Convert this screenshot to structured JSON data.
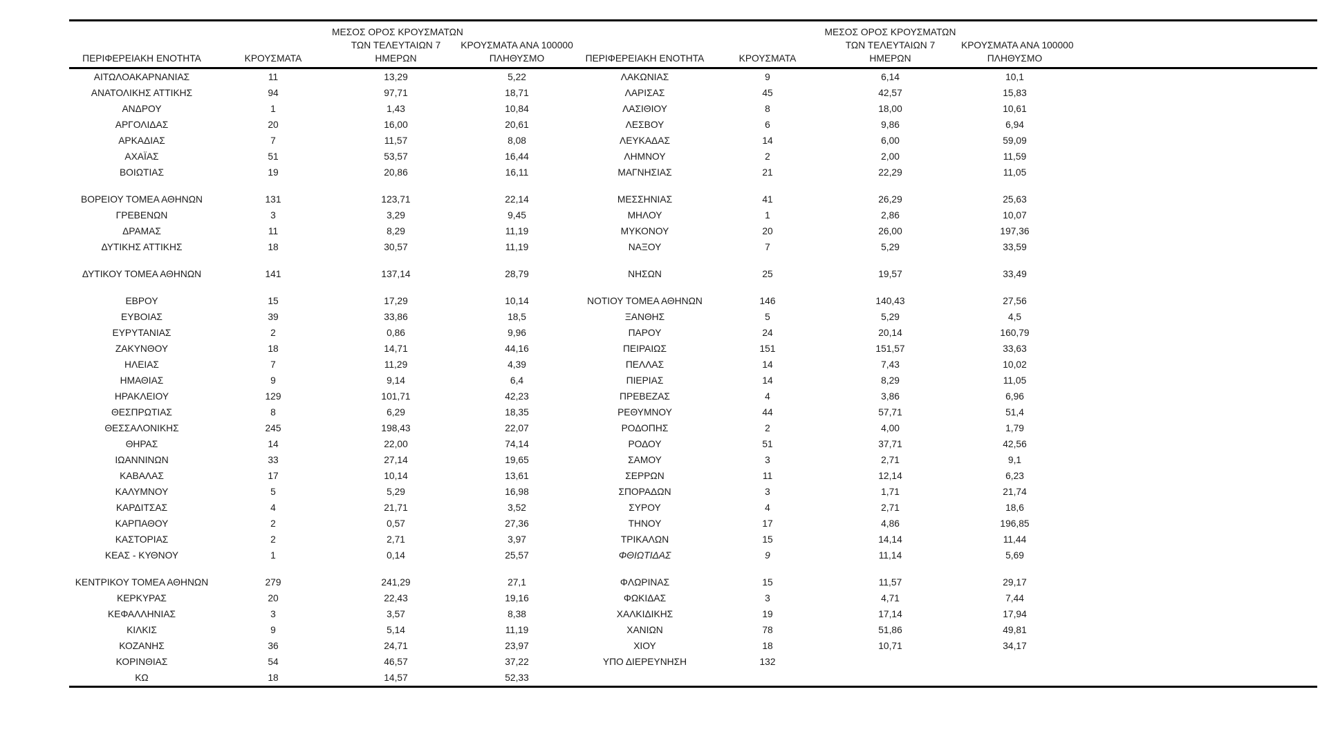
{
  "table": {
    "headers": {
      "region": "ΠΕΡΙΦΕΡΕΙΑΚΗ ΕΝΟΤΗΤΑ",
      "cases": "ΚΡΟΥΣΜΑΤΑ",
      "avg7_lines": [
        "ΜΕΣΟΣ ΟΡΟΣ ΚΡΟΥΣΜΑΤΩΝ",
        "ΤΩΝ ΤΕΛΕΥΤΑΙΩΝ 7",
        "ΗΜΕΡΩΝ"
      ],
      "per100k_lines": [
        "ΚΡΟΥΣΜΑΤΑ ΑΝΑ 100000",
        "ΠΛΗΘΥΣΜΟ"
      ]
    },
    "rows": [
      {
        "l": [
          "ΑΙΤΩΛΟΑΚΑΡΝΑΝΙΑΣ",
          "11",
          "13,29",
          "5,22"
        ],
        "r": [
          "ΛΑΚΩΝΙΑΣ",
          "9",
          "6,14",
          "10,1"
        ]
      },
      {
        "l": [
          "ΑΝΑΤΟΛΙΚΗΣ ΑΤΤΙΚΗΣ",
          "94",
          "97,71",
          "18,71"
        ],
        "r": [
          "ΛΑΡΙΣΑΣ",
          "45",
          "42,57",
          "15,83"
        ]
      },
      {
        "l": [
          "ΑΝΔΡΟΥ",
          "1",
          "1,43",
          "10,84"
        ],
        "r": [
          "ΛΑΣΙΘΙΟΥ",
          "8",
          "18,00",
          "10,61"
        ]
      },
      {
        "l": [
          "ΑΡΓΟΛΙΔΑΣ",
          "20",
          "16,00",
          "20,61"
        ],
        "r": [
          "ΛΕΣΒΟΥ",
          "6",
          "9,86",
          "6,94"
        ]
      },
      {
        "l": [
          "ΑΡΚΑΔΙΑΣ",
          "7",
          "11,57",
          "8,08"
        ],
        "r": [
          "ΛΕΥΚΑΔΑΣ",
          "14",
          "6,00",
          "59,09"
        ]
      },
      {
        "l": [
          "ΑΧΑΪΑΣ",
          "51",
          "53,57",
          "16,44"
        ],
        "r": [
          "ΛΗΜΝΟΥ",
          "2",
          "2,00",
          "11,59"
        ]
      },
      {
        "l": [
          "ΒΟΙΩΤΙΑΣ",
          "19",
          "20,86",
          "16,11"
        ],
        "r": [
          "ΜΑΓΝΗΣΙΑΣ",
          "21",
          "22,29",
          "11,05"
        ]
      },
      {
        "blank": true
      },
      {
        "l": [
          "ΒΟΡΕΙΟΥ ΤΟΜΕΑ ΑΘΗΝΩΝ",
          "131",
          "123,71",
          "22,14"
        ],
        "r": [
          "ΜΕΣΣΗΝΙΑΣ",
          "41",
          "26,29",
          "25,63"
        ]
      },
      {
        "l": [
          "ΓΡΕΒΕΝΩΝ",
          "3",
          "3,29",
          "9,45"
        ],
        "r": [
          "ΜΗΛΟΥ",
          "1",
          "2,86",
          "10,07"
        ]
      },
      {
        "l": [
          "ΔΡΑΜΑΣ",
          "11",
          "8,29",
          "11,19"
        ],
        "r": [
          "ΜΥΚΟΝΟΥ",
          "20",
          "26,00",
          "197,36"
        ]
      },
      {
        "l": [
          "ΔΥΤΙΚΗΣ ΑΤΤΙΚΗΣ",
          "18",
          "30,57",
          "11,19"
        ],
        "r": [
          "ΝΑΞΟΥ",
          "7",
          "5,29",
          "33,59"
        ]
      },
      {
        "blank": true
      },
      {
        "l": [
          "ΔΥΤΙΚΟΥ ΤΟΜΕΑ ΑΘΗΝΩΝ",
          "141",
          "137,14",
          "28,79"
        ],
        "r": [
          "ΝΗΣΩΝ",
          "25",
          "19,57",
          "33,49"
        ]
      },
      {
        "blank": true
      },
      {
        "l": [
          "ΕΒΡΟΥ",
          "15",
          "17,29",
          "10,14"
        ],
        "r": [
          "ΝΟΤΙΟΥ ΤΟΜΕΑ ΑΘΗΝΩΝ",
          "146",
          "140,43",
          "27,56"
        ]
      },
      {
        "l": [
          "ΕΥΒΟΙΑΣ",
          "39",
          "33,86",
          "18,5"
        ],
        "r": [
          "ΞΑΝΘΗΣ",
          "5",
          "5,29",
          "4,5"
        ]
      },
      {
        "l": [
          "ΕΥΡΥΤΑΝΙΑΣ",
          "2",
          "0,86",
          "9,96"
        ],
        "r": [
          "ΠΑΡΟΥ",
          "24",
          "20,14",
          "160,79"
        ]
      },
      {
        "l": [
          "ΖΑΚΥΝΘΟΥ",
          "18",
          "14,71",
          "44,16"
        ],
        "r": [
          "ΠΕΙΡΑΙΩΣ",
          "151",
          "151,57",
          "33,63"
        ]
      },
      {
        "l": [
          "ΗΛΕΙΑΣ",
          "7",
          "11,29",
          "4,39"
        ],
        "r": [
          "ΠΕΛΛΑΣ",
          "14",
          "7,43",
          "10,02"
        ]
      },
      {
        "l": [
          "ΗΜΑΘΙΑΣ",
          "9",
          "9,14",
          "6,4"
        ],
        "r": [
          "ΠΙΕΡΙΑΣ",
          "14",
          "8,29",
          "11,05"
        ]
      },
      {
        "l": [
          "ΗΡΑΚΛΕΙΟΥ",
          "129",
          "101,71",
          "42,23"
        ],
        "r": [
          "ΠΡΕΒΕΖΑΣ",
          "4",
          "3,86",
          "6,96"
        ]
      },
      {
        "l": [
          "ΘΕΣΠΡΩΤΙΑΣ",
          "8",
          "6,29",
          "18,35"
        ],
        "r": [
          "ΡΕΘΥΜΝΟΥ",
          "44",
          "57,71",
          "51,4"
        ]
      },
      {
        "l": [
          "ΘΕΣΣΑΛΟΝΙΚΗΣ",
          "245",
          "198,43",
          "22,07"
        ],
        "r": [
          "ΡΟΔΟΠΗΣ",
          "2",
          "4,00",
          "1,79"
        ]
      },
      {
        "l": [
          "ΘΗΡΑΣ",
          "14",
          "22,00",
          "74,14"
        ],
        "r": [
          "ΡΟΔΟΥ",
          "51",
          "37,71",
          "42,56"
        ]
      },
      {
        "l": [
          "ΙΩΑΝΝΙΝΩΝ",
          "33",
          "27,14",
          "19,65"
        ],
        "r": [
          "ΣΑΜΟΥ",
          "3",
          "2,71",
          "9,1"
        ]
      },
      {
        "l": [
          "ΚΑΒΑΛΑΣ",
          "17",
          "10,14",
          "13,61"
        ],
        "r": [
          "ΣΕΡΡΩΝ",
          "11",
          "12,14",
          "6,23"
        ]
      },
      {
        "l": [
          "ΚΑΛΥΜΝΟΥ",
          "5",
          "5,29",
          "16,98"
        ],
        "r": [
          "ΣΠΟΡΑΔΩΝ",
          "3",
          "1,71",
          "21,74"
        ]
      },
      {
        "l": [
          "ΚΑΡΔΙΤΣΑΣ",
          "4",
          "21,71",
          "3,52"
        ],
        "r": [
          "ΣΥΡΟΥ",
          "4",
          "2,71",
          "18,6"
        ]
      },
      {
        "l": [
          "ΚΑΡΠΑΘΟΥ",
          "2",
          "0,57",
          "27,36"
        ],
        "r": [
          "ΤΗΝΟΥ",
          "17",
          "4,86",
          "196,85"
        ]
      },
      {
        "l": [
          "ΚΑΣΤΟΡΙΑΣ",
          "2",
          "2,71",
          "3,97"
        ],
        "r": [
          "ΤΡΙΚΑΛΩΝ",
          "15",
          "14,14",
          "11,44"
        ]
      },
      {
        "l": [
          "ΚΕΑΣ - ΚΥΘΝΟΥ",
          "1",
          "0,14",
          "25,57"
        ],
        "r": [
          "ΦΘΙΩΤΙΔΑΣ",
          "9",
          "11,14",
          "5,69"
        ],
        "r_italic": true
      },
      {
        "blank": true
      },
      {
        "l": [
          "ΚΕΝΤΡΙΚΟΥ ΤΟΜΕΑ ΑΘΗΝΩΝ",
          "279",
          "241,29",
          "27,1"
        ],
        "r": [
          "ΦΛΩΡΙΝΑΣ",
          "15",
          "11,57",
          "29,17"
        ]
      },
      {
        "l": [
          "ΚΕΡΚΥΡΑΣ",
          "20",
          "22,43",
          "19,16"
        ],
        "r": [
          "ΦΩΚΙΔΑΣ",
          "3",
          "4,71",
          "7,44"
        ]
      },
      {
        "l": [
          "ΚΕΦΑΛΛΗΝΙΑΣ",
          "3",
          "3,57",
          "8,38"
        ],
        "r": [
          "ΧΑΛΚΙΔΙΚΗΣ",
          "19",
          "17,14",
          "17,94"
        ]
      },
      {
        "l": [
          "ΚΙΛΚΙΣ",
          "9",
          "5,14",
          "11,19"
        ],
        "r": [
          "ΧΑΝΙΩΝ",
          "78",
          "51,86",
          "49,81"
        ]
      },
      {
        "l": [
          "ΚΟΖΑΝΗΣ",
          "36",
          "24,71",
          "23,97"
        ],
        "r": [
          "ΧΙΟΥ",
          "18",
          "10,71",
          "34,17"
        ]
      },
      {
        "l": [
          "ΚΟΡΙΝΘΙΑΣ",
          "54",
          "46,57",
          "37,22"
        ],
        "r": [
          "ΥΠΟ ΔΙΕΡΕΥΝΗΣΗ",
          "132",
          "",
          ""
        ]
      },
      {
        "l": [
          "ΚΩ",
          "18",
          "14,57",
          "52,33"
        ],
        "r": [
          "",
          "",
          "",
          ""
        ]
      }
    ]
  }
}
